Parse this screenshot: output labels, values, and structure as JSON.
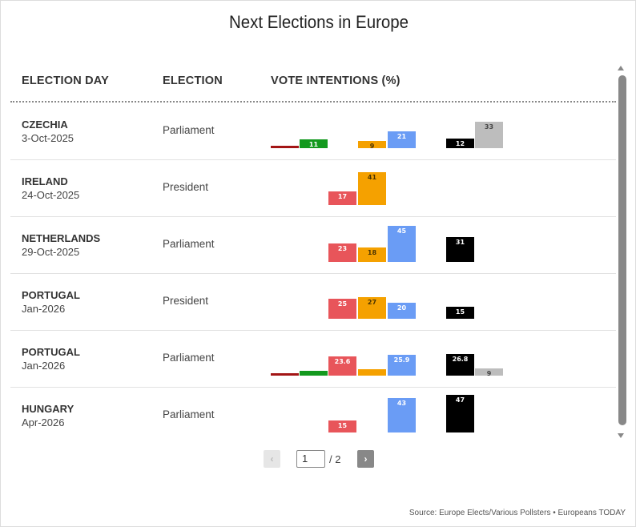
{
  "title": "Next Elections in Europe",
  "headers": {
    "election_day": "ELECTION DAY",
    "election": "ELECTION",
    "vote_intentions": "VOTE INTENTIONS (%)"
  },
  "colors": {
    "darkred": "#a31515",
    "green": "#13991e",
    "red": "#e8555a",
    "orange": "#f5a100",
    "blue": "#6a9cf5",
    "black": "#000000",
    "gray": "#bdbdbd"
  },
  "pager": {
    "prev_icon": "chevron-left-icon",
    "prev_label": "‹",
    "current": "1",
    "total": "/ 2",
    "next_icon": "chevron-right-icon",
    "next_label": "›"
  },
  "source": "Source: Europe Elects/Various Pollsters • Europeans TODAY",
  "chart_data": {
    "type": "bar",
    "slots": [
      "darkred",
      "green",
      "red",
      "orange",
      "blue",
      "black",
      "gray"
    ],
    "rows": [
      {
        "country": "CZECHIA",
        "date": "3-Oct-2025",
        "election": "Parliament",
        "bars": [
          {
            "slot": "darkred",
            "value": 1.5,
            "label": ""
          },
          {
            "slot": "green",
            "value": 11,
            "label": "11"
          },
          {
            "slot": "orange",
            "value": 9,
            "label": "9"
          },
          {
            "slot": "blue",
            "value": 21,
            "label": "21"
          },
          {
            "slot": "black",
            "value": 12,
            "label": "12"
          },
          {
            "slot": "gray",
            "value": 33,
            "label": "33"
          }
        ]
      },
      {
        "country": "IRELAND",
        "date": "24-Oct-2025",
        "election": "President",
        "bars": [
          {
            "slot": "red",
            "value": 17,
            "label": "17"
          },
          {
            "slot": "orange",
            "value": 41,
            "label": "41"
          }
        ]
      },
      {
        "country": "NETHERLANDS",
        "date": "29-Oct-2025",
        "election": "Parliament",
        "bars": [
          {
            "slot": "red",
            "value": 23,
            "label": "23"
          },
          {
            "slot": "orange",
            "value": 18,
            "label": "18"
          },
          {
            "slot": "blue",
            "value": 45,
            "label": "45"
          },
          {
            "slot": "black",
            "value": 31,
            "label": "31"
          }
        ]
      },
      {
        "country": "PORTUGAL",
        "date": "Jan-2026",
        "election": "President",
        "bars": [
          {
            "slot": "red",
            "value": 25,
            "label": "25"
          },
          {
            "slot": "orange",
            "value": 27,
            "label": "27"
          },
          {
            "slot": "blue",
            "value": 20,
            "label": "20"
          },
          {
            "slot": "black",
            "value": 15,
            "label": "15"
          }
        ]
      },
      {
        "country": "PORTUGAL",
        "date": "Jan-2026",
        "election": "Parliament",
        "bars": [
          {
            "slot": "darkred",
            "value": 2.5,
            "label": ""
          },
          {
            "slot": "green",
            "value": 5.5,
            "label": ""
          },
          {
            "slot": "red",
            "value": 23.6,
            "label": "23.6"
          },
          {
            "slot": "orange",
            "value": 7.5,
            "label": ""
          },
          {
            "slot": "blue",
            "value": 25.9,
            "label": "25.9"
          },
          {
            "slot": "black",
            "value": 26.8,
            "label": "26.8"
          },
          {
            "slot": "gray",
            "value": 9,
            "label": "9"
          }
        ]
      },
      {
        "country": "HUNGARY",
        "date": "Apr-2026",
        "election": "Parliament",
        "bars": [
          {
            "slot": "red",
            "value": 15,
            "label": "15"
          },
          {
            "slot": "blue",
            "value": 43,
            "label": "43"
          },
          {
            "slot": "black",
            "value": 47,
            "label": "47"
          }
        ]
      }
    ]
  }
}
